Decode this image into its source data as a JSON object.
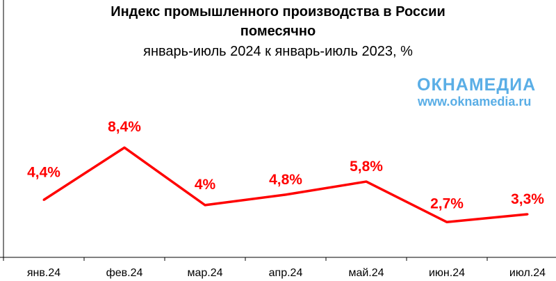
{
  "chart_data": {
    "type": "line",
    "title": "Индекс промышленного производства в России",
    "title_line2": "помесячно",
    "subtitle": "январь-июль 2024 к январь-июль 2023, %",
    "categories": [
      "янв.24",
      "фев.24",
      "мар.24",
      "апр.24",
      "май.24",
      "июн.24",
      "июл.24"
    ],
    "series": [
      {
        "name": "Индекс промышленного производства",
        "values": [
          4.4,
          8.4,
          4,
          4.8,
          5.8,
          2.7,
          3.3
        ],
        "labels": [
          "4,4%",
          "8,4%",
          "4%",
          "4,8%",
          "5,8%",
          "2,7%",
          "3,3%"
        ],
        "color": "#ff0000"
      }
    ],
    "xlabel": "",
    "ylabel": "",
    "ylim": [
      0,
      19.7
    ],
    "grid": false
  },
  "watermark": {
    "logo": "ОКНАМЕДИА",
    "url": "www.oknamedia.ru",
    "color": "#5aaee6"
  }
}
